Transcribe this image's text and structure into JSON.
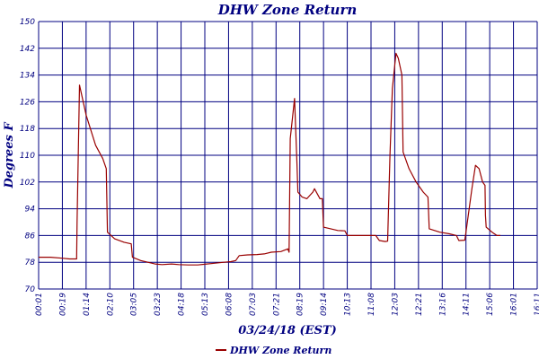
{
  "chart_data": {
    "type": "line",
    "title": "DHW Zone Return",
    "xlabel": "03/24/18 (EST)",
    "ylabel": "Degrees F",
    "ylim": [
      70,
      150
    ],
    "yticks": [
      70,
      78,
      86,
      94,
      102,
      110,
      118,
      126,
      134,
      142,
      150
    ],
    "xticks": [
      "00:01",
      "00:19",
      "01:14",
      "02:10",
      "03:05",
      "03:23",
      "04:18",
      "05:13",
      "06:08",
      "07:03",
      "07:21",
      "08:19",
      "09:14",
      "10:13",
      "11:08",
      "12:03",
      "12:21",
      "13:16",
      "14:11",
      "15:06",
      "16:01",
      "16:11"
    ],
    "grid": true,
    "legend_position": "bottom-center",
    "colors": {
      "series": "#990000",
      "grid": "#000080",
      "text": "#000080"
    },
    "series": [
      {
        "name": "DHW Zone Return",
        "points": [
          [
            0.0,
            79.5
          ],
          [
            0.5,
            79.5
          ],
          [
            1.0,
            79.2
          ],
          [
            1.3,
            79.0
          ],
          [
            1.6,
            79.0
          ],
          [
            1.62,
            90.0
          ],
          [
            1.72,
            131.0
          ],
          [
            2.0,
            122.0
          ],
          [
            2.4,
            113.0
          ],
          [
            2.7,
            109.0
          ],
          [
            2.85,
            106.0
          ],
          [
            2.9,
            87.0
          ],
          [
            3.2,
            85.0
          ],
          [
            3.6,
            84.0
          ],
          [
            3.9,
            83.5
          ],
          [
            3.95,
            79.5
          ],
          [
            4.3,
            78.5
          ],
          [
            4.6,
            78.0
          ],
          [
            4.9,
            77.5
          ],
          [
            5.2,
            77.3
          ],
          [
            5.6,
            77.5
          ],
          [
            5.9,
            77.3
          ],
          [
            6.3,
            77.2
          ],
          [
            6.7,
            77.2
          ],
          [
            7.0,
            77.4
          ],
          [
            7.4,
            77.7
          ],
          [
            7.8,
            78.0
          ],
          [
            8.1,
            78.2
          ],
          [
            8.3,
            78.5
          ],
          [
            8.45,
            80.0
          ],
          [
            8.8,
            80.2
          ],
          [
            9.2,
            80.3
          ],
          [
            9.5,
            80.5
          ],
          [
            9.8,
            81.0
          ],
          [
            10.2,
            81.2
          ],
          [
            10.5,
            82.0
          ],
          [
            10.55,
            81.0
          ],
          [
            10.6,
            115.0
          ],
          [
            10.78,
            127.0
          ],
          [
            10.88,
            108.0
          ],
          [
            10.92,
            99.0
          ],
          [
            11.1,
            97.5
          ],
          [
            11.3,
            97.0
          ],
          [
            11.55,
            99.0
          ],
          [
            11.62,
            100.0
          ],
          [
            11.85,
            97.0
          ],
          [
            11.95,
            97.0
          ],
          [
            12.0,
            88.5
          ],
          [
            12.3,
            88.0
          ],
          [
            12.6,
            87.5
          ],
          [
            12.9,
            87.4
          ],
          [
            13.0,
            86.0
          ],
          [
            13.6,
            86.0
          ],
          [
            14.2,
            86.0
          ],
          [
            14.35,
            84.5
          ],
          [
            14.6,
            84.2
          ],
          [
            14.7,
            84.3
          ],
          [
            14.8,
            110.0
          ],
          [
            14.9,
            130.0
          ],
          [
            15.05,
            140.5
          ],
          [
            15.15,
            139.0
          ],
          [
            15.3,
            134.0
          ],
          [
            15.35,
            111.0
          ],
          [
            15.6,
            106.0
          ],
          [
            15.9,
            102.0
          ],
          [
            16.2,
            99.0
          ],
          [
            16.4,
            97.5
          ],
          [
            16.45,
            88.0
          ],
          [
            16.9,
            87.0
          ],
          [
            17.3,
            86.5
          ],
          [
            17.6,
            86.0
          ],
          [
            17.7,
            84.5
          ],
          [
            17.95,
            84.6
          ],
          [
            18.0,
            87.0
          ],
          [
            18.25,
            100.0
          ],
          [
            18.4,
            107.0
          ],
          [
            18.55,
            106.0
          ],
          [
            18.7,
            102.0
          ],
          [
            18.8,
            101.0
          ],
          [
            18.82,
            92.0
          ],
          [
            18.85,
            88.5
          ],
          [
            19.1,
            87.0
          ],
          [
            19.3,
            86.0
          ],
          [
            19.45,
            86.0
          ]
        ]
      }
    ]
  }
}
